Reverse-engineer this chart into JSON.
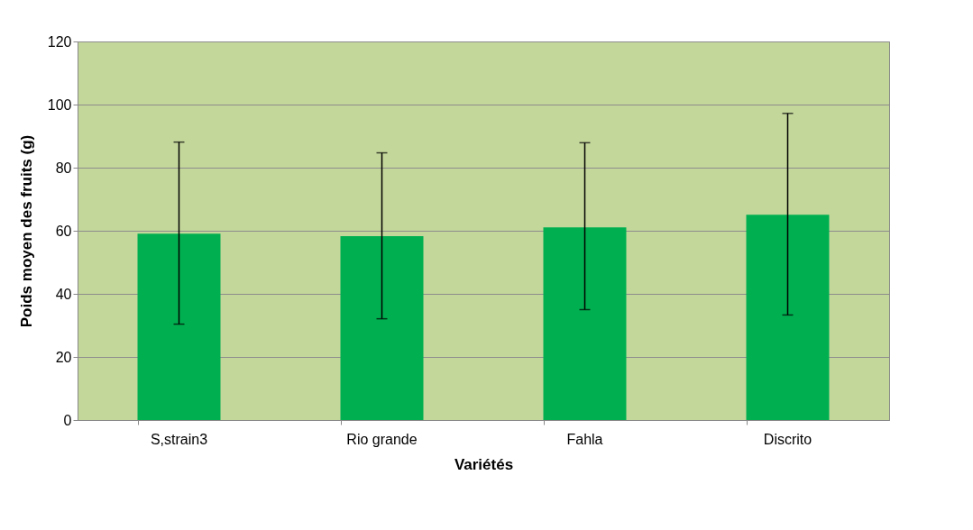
{
  "chart_data": {
    "type": "bar",
    "xlabel": "Variétés",
    "ylabel": "Poids moyen des fruits (g)",
    "categories": [
      "S,strain3",
      "Rio grande",
      "Fahla",
      "Discrito"
    ],
    "values": [
      59.1,
      58.3,
      61.1,
      65.1
    ],
    "errors": [
      [
        30.4,
        88.1
      ],
      [
        32.1,
        84.7
      ],
      [
        35.0,
        87.9
      ],
      [
        33.3,
        97.2
      ]
    ],
    "color": "#00b050",
    "ylim": [
      0,
      120
    ],
    "yticks": [
      0,
      20,
      40,
      60,
      80,
      100,
      120
    ],
    "grid": "y"
  }
}
